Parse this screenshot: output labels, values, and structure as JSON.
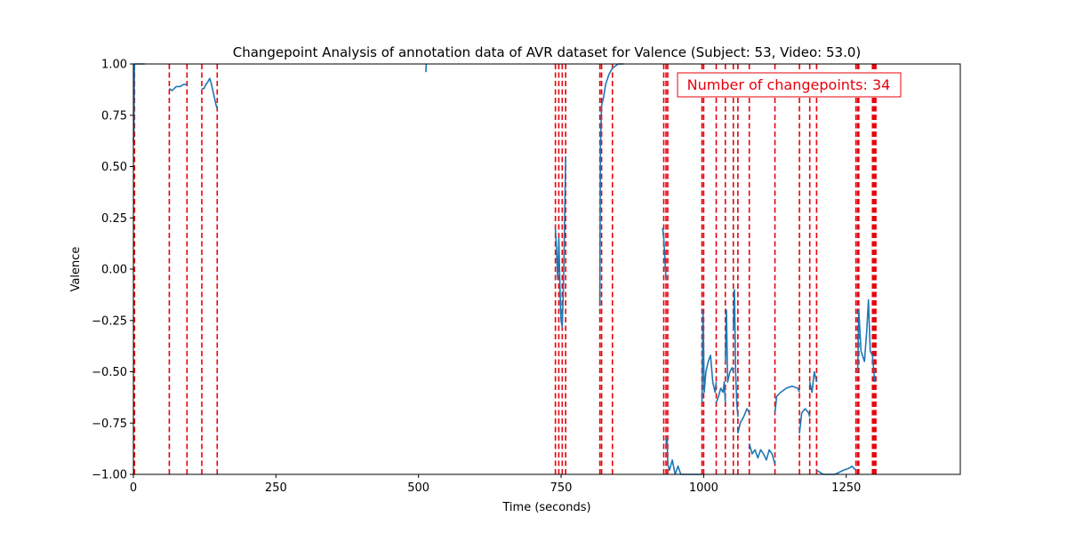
{
  "chart_data": {
    "type": "line",
    "title": "Changepoint Analysis of annotation data of AVR dataset for Valence (Subject: 53, Video: 53.0)",
    "xlabel": "Time (seconds)",
    "ylabel": "Valence",
    "xlim": [
      0,
      1450
    ],
    "ylim": [
      -1.0,
      1.0
    ],
    "x_ticks": [
      0,
      250,
      500,
      750,
      1000,
      1250
    ],
    "x_tick_labels": [
      "0",
      "250",
      "500",
      "750",
      "1000",
      "1250"
    ],
    "y_ticks": [
      -1.0,
      -0.75,
      -0.5,
      -0.25,
      0.0,
      0.25,
      0.5,
      0.75,
      1.0
    ],
    "y_tick_labels": [
      "−1.00",
      "−0.75",
      "−0.50",
      "−0.25",
      "0.00",
      "0.25",
      "0.50",
      "0.75",
      "1.00"
    ],
    "grid": false,
    "annotation": {
      "text": "Number of changepoints: 34",
      "color": "#e8000b"
    },
    "colors": {
      "series": "#1f77b4",
      "changepoint": "#e8000b"
    },
    "changepoints": [
      1,
      2,
      63,
      94,
      120,
      147,
      740,
      746,
      752,
      758,
      818,
      821,
      840,
      930,
      934,
      937,
      997,
      1000,
      1022,
      1038,
      1052,
      1060,
      1080,
      1125,
      1168,
      1186,
      1198,
      1267,
      1270,
      1272,
      1296,
      1298,
      1300,
      1302
    ],
    "segments": [
      [
        [
          0,
          0.62
        ],
        [
          1,
          0.68
        ],
        [
          1.5,
          0.95
        ],
        [
          2,
          1.0
        ],
        [
          20,
          1.0
        ]
      ],
      [
        [
          63,
          0.88
        ],
        [
          68,
          0.87
        ],
        [
          75,
          0.89
        ],
        [
          82,
          0.89
        ],
        [
          88,
          0.9
        ],
        [
          94,
          0.9
        ]
      ],
      [
        [
          120,
          0.88
        ],
        [
          124,
          0.88
        ],
        [
          127,
          0.9
        ],
        [
          130,
          0.91
        ],
        [
          134,
          0.93
        ],
        [
          137,
          0.9
        ],
        [
          141,
          0.85
        ],
        [
          145,
          0.8
        ],
        [
          147,
          0.78
        ]
      ],
      [
        [
          513,
          0.96
        ],
        [
          513.5,
          1.0
        ]
      ],
      [
        [
          740,
          0.2
        ],
        [
          742,
          0.1
        ],
        [
          744,
          -0.05
        ],
        [
          746,
          0.15
        ],
        [
          748,
          -0.1
        ],
        [
          750,
          -0.25
        ],
        [
          752,
          -0.28
        ],
        [
          754,
          -0.1
        ],
        [
          758,
          0.55
        ]
      ],
      [
        [
          818,
          -0.18
        ],
        [
          819,
          0.6
        ],
        [
          821,
          0.8
        ],
        [
          824,
          0.83
        ],
        [
          828,
          0.9
        ],
        [
          834,
          0.95
        ],
        [
          840,
          0.98
        ],
        [
          850,
          1.0
        ],
        [
          860,
          1.0
        ]
      ],
      [
        [
          928,
          0.2
        ],
        [
          930,
          0.15
        ],
        [
          932,
          0.05
        ],
        [
          934,
          -0.05
        ]
      ],
      [
        [
          934,
          -0.85
        ],
        [
          936,
          -0.82
        ],
        [
          937,
          -0.95
        ],
        [
          940,
          -0.98
        ],
        [
          945,
          -0.93
        ],
        [
          950,
          -1.0
        ],
        [
          955,
          -0.96
        ],
        [
          960,
          -1.0
        ],
        [
          965,
          -1.0
        ],
        [
          970,
          -1.0
        ],
        [
          975,
          -1.0
        ],
        [
          980,
          -1.0
        ],
        [
          985,
          -1.0
        ],
        [
          992,
          -1.0
        ],
        [
          997,
          -1.0
        ]
      ],
      [
        [
          997,
          -0.65
        ],
        [
          999,
          -0.2
        ],
        [
          1001,
          -0.6
        ],
        [
          1004,
          -0.5
        ],
        [
          1008,
          -0.45
        ],
        [
          1012,
          -0.42
        ],
        [
          1016,
          -0.55
        ],
        [
          1020,
          -0.6
        ],
        [
          1022,
          -0.55
        ]
      ],
      [
        [
          1022,
          -0.65
        ],
        [
          1026,
          -0.62
        ],
        [
          1030,
          -0.58
        ],
        [
          1034,
          -0.6
        ],
        [
          1036,
          -0.55
        ],
        [
          1038,
          -0.65
        ]
      ],
      [
        [
          1038,
          -0.45
        ],
        [
          1040,
          -0.2
        ],
        [
          1042,
          -0.55
        ],
        [
          1046,
          -0.5
        ],
        [
          1050,
          -0.48
        ],
        [
          1052,
          -0.5
        ]
      ],
      [
        [
          1052,
          -0.3
        ],
        [
          1054,
          -0.1
        ],
        [
          1056,
          -0.5
        ],
        [
          1058,
          -0.65
        ],
        [
          1060,
          -0.72
        ]
      ],
      [
        [
          1060,
          -0.8
        ],
        [
          1064,
          -0.75
        ],
        [
          1070,
          -0.72
        ],
        [
          1076,
          -0.68
        ],
        [
          1080,
          -0.7
        ]
      ],
      [
        [
          1080,
          -0.85
        ],
        [
          1085,
          -0.9
        ],
        [
          1090,
          -0.88
        ],
        [
          1095,
          -0.92
        ],
        [
          1100,
          -0.88
        ],
        [
          1105,
          -0.9
        ],
        [
          1110,
          -0.93
        ],
        [
          1115,
          -0.88
        ],
        [
          1120,
          -0.9
        ],
        [
          1125,
          -0.95
        ]
      ],
      [
        [
          1125,
          -0.7
        ],
        [
          1128,
          -0.62
        ],
        [
          1135,
          -0.6
        ],
        [
          1145,
          -0.58
        ],
        [
          1155,
          -0.57
        ],
        [
          1165,
          -0.58
        ],
        [
          1168,
          -0.6
        ]
      ],
      [
        [
          1168,
          -0.8
        ],
        [
          1172,
          -0.7
        ],
        [
          1178,
          -0.68
        ],
        [
          1184,
          -0.7
        ],
        [
          1186,
          -0.72
        ]
      ],
      [
        [
          1186,
          -0.55
        ],
        [
          1190,
          -0.6
        ],
        [
          1194,
          -0.5
        ],
        [
          1198,
          -0.55
        ]
      ],
      [
        [
          1198,
          -0.98
        ],
        [
          1210,
          -1.0
        ],
        [
          1230,
          -1.0
        ],
        [
          1245,
          -0.98
        ],
        [
          1255,
          -0.97
        ],
        [
          1260,
          -0.96
        ],
        [
          1267,
          -0.98
        ]
      ],
      [
        [
          1270,
          -0.5
        ],
        [
          1272,
          -0.2
        ],
        [
          1276,
          -0.4
        ],
        [
          1282,
          -0.45
        ],
        [
          1286,
          -0.3
        ],
        [
          1289,
          -0.15
        ],
        [
          1292,
          -0.4
        ],
        [
          1296,
          -0.42
        ],
        [
          1300,
          -0.55
        ]
      ]
    ]
  }
}
